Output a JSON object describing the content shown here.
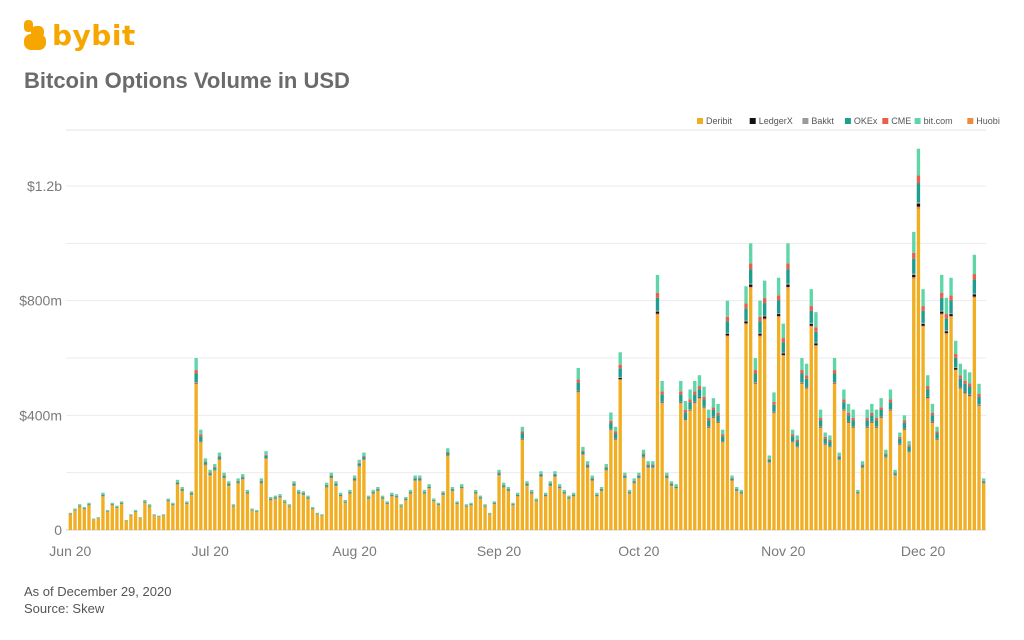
{
  "brand": {
    "name": "bybit",
    "color": "#f7a600"
  },
  "title": "Bitcoin Options Volume in USD",
  "footer": {
    "as_of": "As of December 29, 2020",
    "source": "Source: Skew"
  },
  "chart_data": {
    "type": "bar",
    "stacked": true,
    "grid": true,
    "legend_position": "top-right",
    "ylim": [
      0,
      1300000000
    ],
    "y_ticks": [
      {
        "value": 0,
        "label": "0"
      },
      {
        "value": 400000000,
        "label": "$400m"
      },
      {
        "value": 800000000,
        "label": "$800m"
      },
      {
        "value": 1200000000,
        "label": "$1.2b"
      }
    ],
    "x_ticks": [
      {
        "index": 0,
        "label": "Jun 20"
      },
      {
        "index": 30,
        "label": "Jul 20"
      },
      {
        "index": 61,
        "label": "Aug 20"
      },
      {
        "index": 92,
        "label": "Sep 20"
      },
      {
        "index": 122,
        "label": "Oct 20"
      },
      {
        "index": 153,
        "label": "Nov 20"
      },
      {
        "index": 183,
        "label": "Dec 20"
      }
    ],
    "series_meta": [
      {
        "name": "Deribit",
        "color": "#f2ae22"
      },
      {
        "name": "LedgerX",
        "color": "#111111"
      },
      {
        "name": "Bakkt",
        "color": "#9a9a9a"
      },
      {
        "name": "OKEx",
        "color": "#1e9e8e"
      },
      {
        "name": "CME",
        "color": "#e8604c"
      },
      {
        "name": "bit.com",
        "color": "#5fd6a8"
      },
      {
        "name": "Huobi",
        "color": "#f08a3c"
      }
    ],
    "totals_m": [
      60,
      75,
      90,
      80,
      95,
      40,
      45,
      130,
      70,
      95,
      85,
      100,
      35,
      55,
      70,
      45,
      105,
      90,
      55,
      50,
      55,
      110,
      95,
      175,
      150,
      100,
      135,
      600,
      350,
      250,
      210,
      230,
      270,
      200,
      170,
      90,
      180,
      195,
      140,
      75,
      70,
      180,
      275,
      115,
      120,
      125,
      105,
      90,
      170,
      140,
      135,
      120,
      80,
      60,
      55,
      165,
      200,
      170,
      130,
      105,
      140,
      190,
      245,
      270,
      120,
      140,
      150,
      120,
      100,
      130,
      125,
      90,
      115,
      140,
      190,
      190,
      140,
      160,
      110,
      95,
      135,
      285,
      150,
      100,
      160,
      90,
      95,
      140,
      120,
      90,
      60,
      100,
      210,
      165,
      150,
      95,
      130,
      360,
      170,
      140,
      110,
      205,
      130,
      170,
      205,
      160,
      140,
      120,
      130,
      565,
      290,
      240,
      190,
      130,
      150,
      230,
      410,
      360,
      620,
      200,
      140,
      180,
      200,
      280,
      240,
      240,
      890,
      520,
      200,
      170,
      160,
      520,
      450,
      490,
      520,
      540,
      500,
      420,
      460,
      440,
      350,
      800,
      190,
      150,
      140,
      850,
      1000,
      600,
      800,
      870,
      260,
      480,
      880,
      720,
      1000,
      350,
      330,
      600,
      580,
      840,
      760,
      420,
      340,
      330,
      600,
      270,
      490,
      440,
      420,
      140,
      240,
      420,
      440,
      420,
      460,
      280,
      490,
      210,
      340,
      400,
      310,
      1040,
      1330,
      840,
      540,
      440,
      360,
      890,
      810,
      880,
      660,
      580,
      560,
      550,
      960,
      510,
      180
    ]
  }
}
